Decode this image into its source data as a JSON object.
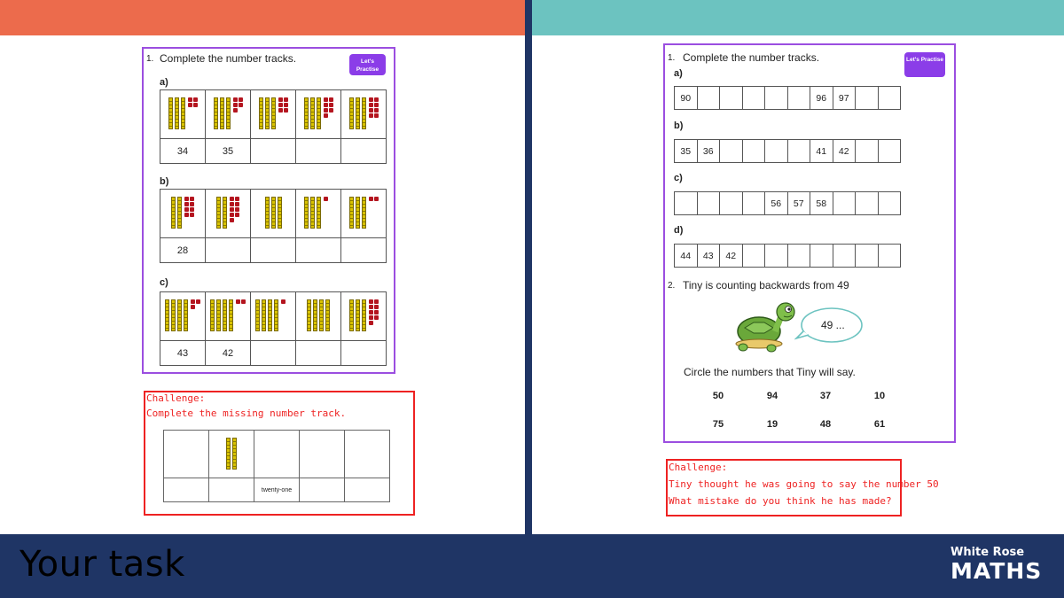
{
  "footer": {
    "title": "Your task",
    "logo_top": "White Rose",
    "logo_bottom": "MATHS"
  },
  "left_sheet": {
    "q_num": "1.",
    "question": "Complete the number tracks.",
    "button": "Let's Practise",
    "parts": [
      {
        "label": "a)",
        "numbers": [
          "34",
          "35",
          "",
          "",
          ""
        ],
        "blocks": [
          [
            3,
            4
          ],
          [
            3,
            5
          ],
          [
            3,
            6
          ],
          [
            3,
            7
          ],
          [
            3,
            8
          ]
        ]
      },
      {
        "label": "b)",
        "numbers": [
          "28",
          "",
          "",
          "",
          ""
        ],
        "blocks": [
          [
            2,
            8
          ],
          [
            2,
            9
          ],
          [
            3,
            0
          ],
          [
            3,
            1
          ],
          [
            3,
            2
          ]
        ]
      },
      {
        "label": "c)",
        "numbers": [
          "43",
          "42",
          "",
          "",
          ""
        ],
        "blocks": [
          [
            4,
            3
          ],
          [
            4,
            2
          ],
          [
            4,
            1
          ],
          [
            4,
            0
          ],
          [
            3,
            9
          ]
        ]
      }
    ]
  },
  "left_challenge": {
    "heading": "Challenge:",
    "text": "Complete the missing number track.",
    "numbers": [
      "",
      "",
      "twenty-one",
      "",
      ""
    ],
    "blocks": [
      null,
      [
        2,
        0
      ],
      null,
      null,
      null
    ]
  },
  "right_sheet": {
    "q1_num": "1.",
    "q1": "Complete the number tracks.",
    "button": "Let's Practise",
    "tracks": [
      {
        "label": "a)",
        "cells": [
          "90",
          "",
          "",
          "",
          "",
          "",
          "96",
          "97",
          "",
          ""
        ]
      },
      {
        "label": "b)",
        "cells": [
          "35",
          "36",
          "",
          "",
          "",
          "",
          "41",
          "42",
          "",
          ""
        ]
      },
      {
        "label": "c)",
        "cells": [
          "",
          "",
          "",
          "",
          "56",
          "57",
          "58",
          "",
          "",
          ""
        ]
      },
      {
        "label": "d)",
        "cells": [
          "44",
          "43",
          "42",
          "",
          "",
          "",
          "",
          "",
          "",
          ""
        ]
      }
    ],
    "q2_num": "2.",
    "q2": "Tiny is counting backwards from 49",
    "speech": "49 ...",
    "instruction": "Circle the numbers that Tiny will say.",
    "circle_numbers": [
      [
        "50",
        "94",
        "37",
        "10"
      ],
      [
        "75",
        "19",
        "48",
        "61"
      ]
    ]
  },
  "right_challenge": {
    "heading": "Challenge:",
    "line1": "Tiny thought he was going to say the number 50",
    "line2": "What mistake do you think he has made?"
  },
  "colors": {
    "left_bar": "#ec6b4c",
    "right_bar": "#6cc3c0",
    "navy": "#1f3565",
    "sheet_border": "#9b4ee0",
    "challenge": "#e22222"
  }
}
